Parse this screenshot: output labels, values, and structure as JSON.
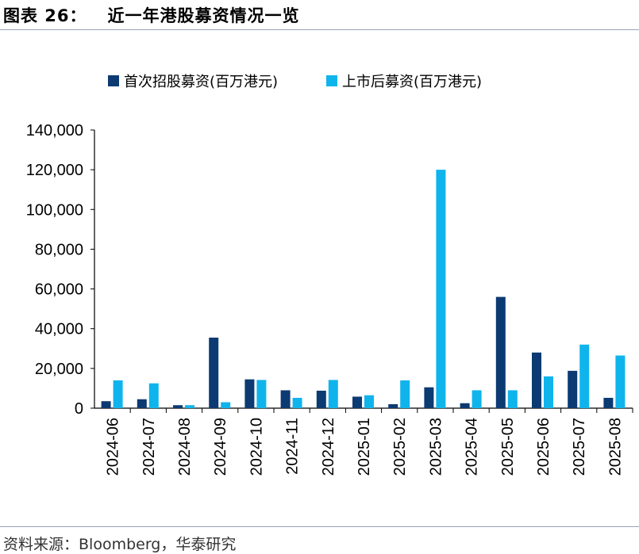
{
  "header": {
    "figure_label": "图表 26：",
    "title": "近一年港股募资情况一览"
  },
  "footer": {
    "source": "资料来源：Bloomberg，华泰研究"
  },
  "colors": {
    "series_1": "#0c3a72",
    "series_2": "#10b4ec",
    "axis": "#000000",
    "rule": "#9aa3b5"
  },
  "chart_data": {
    "type": "bar",
    "categories": [
      "2024-06",
      "2024-07",
      "2024-08",
      "2024-09",
      "2024-10",
      "2024-11",
      "2024-12",
      "2025-01",
      "2025-02",
      "2025-03",
      "2025-04",
      "2025-05",
      "2025-06",
      "2025-07",
      "2025-08"
    ],
    "series": [
      {
        "name": "首次招股募资(百万港元)",
        "values": [
          3500,
          4500,
          1500,
          35500,
          14500,
          9000,
          8800,
          5800,
          2000,
          10500,
          2500,
          56000,
          28000,
          18800,
          5200
        ]
      },
      {
        "name": "上市后募资(百万港元)",
        "values": [
          14000,
          12500,
          1500,
          3000,
          14200,
          5200,
          14200,
          6500,
          14000,
          120000,
          9000,
          9000,
          16000,
          32000,
          26500
        ]
      }
    ],
    "yticks": [
      "0",
      "20,000",
      "40,000",
      "60,000",
      "80,000",
      "100,000",
      "120,000",
      "140,000"
    ],
    "ylim": [
      0,
      140000
    ],
    "legend_position": "top",
    "grid": false,
    "xlabel": "",
    "ylabel": ""
  }
}
